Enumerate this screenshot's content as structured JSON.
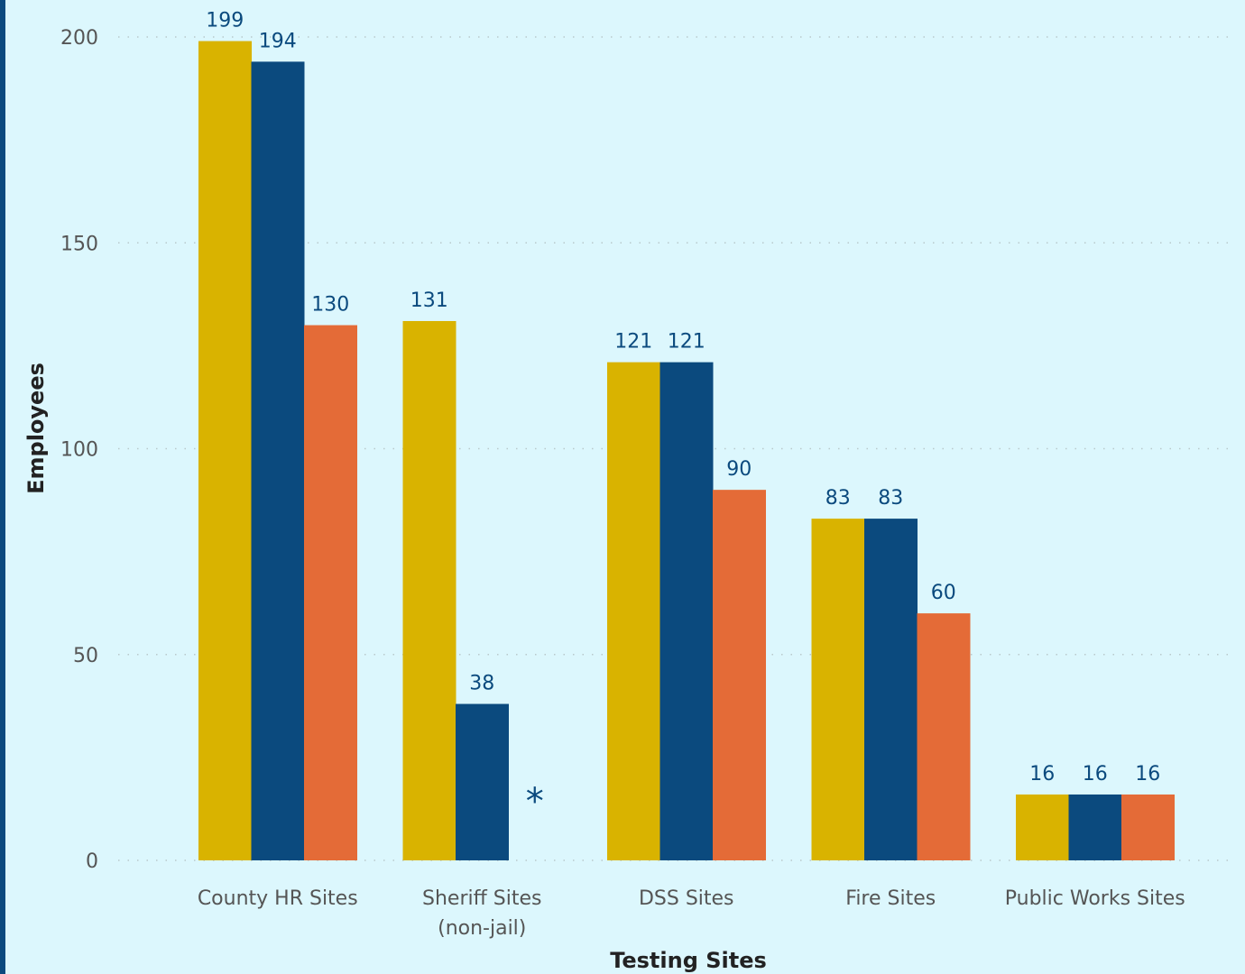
{
  "chart_data": {
    "type": "bar",
    "categories": [
      [
        "County HR Sites"
      ],
      [
        "Sheriff Sites",
        "(non-jail)"
      ],
      [
        "DSS Sites"
      ],
      [
        "Fire Sites"
      ],
      [
        "Public Works Sites"
      ]
    ],
    "series": [
      {
        "color": "#d9b300",
        "values": [
          199,
          131,
          121,
          83,
          16
        ]
      },
      {
        "color": "#0b4a7e",
        "values": [
          194,
          38,
          121,
          83,
          16
        ]
      },
      {
        "color": "#e46b37",
        "values": [
          130,
          null,
          90,
          60,
          16
        ]
      }
    ],
    "missing_marker": "*",
    "xlabel": "Testing Sites",
    "ylabel": "Employees",
    "ylim": [
      0,
      200
    ],
    "yticks": [
      0,
      50,
      100,
      150,
      200
    ],
    "grid": true,
    "legend": "none"
  }
}
